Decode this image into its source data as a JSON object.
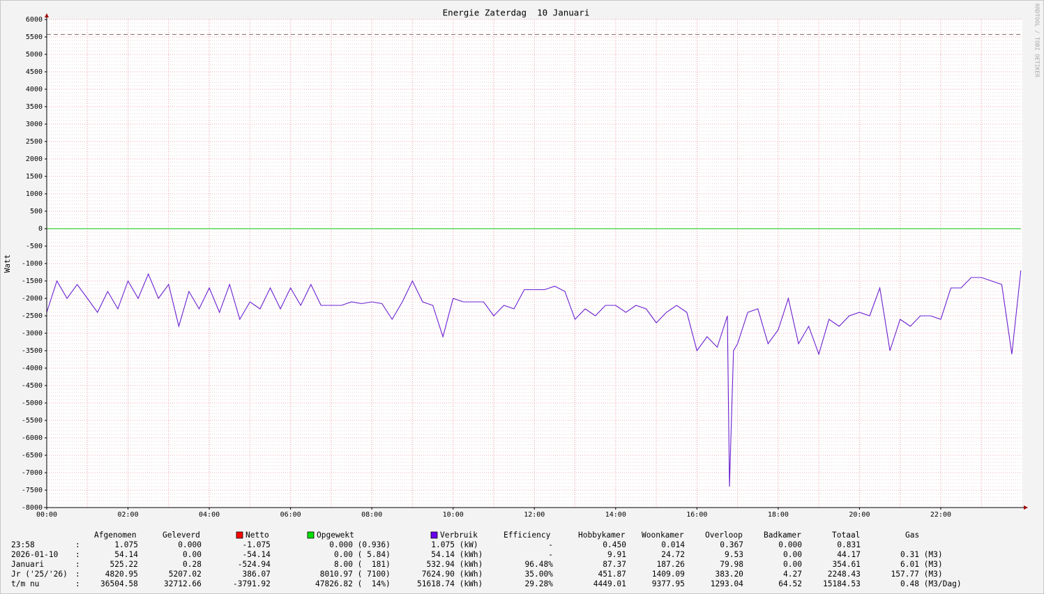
{
  "chart_data": {
    "type": "line",
    "title": "Energie Zaterdag  10 Januari",
    "y_label": "Watt",
    "side_text": "RRDTOOL / TOBI OETIKER",
    "x": [
      0,
      0.25,
      0.5,
      0.75,
      1,
      1.25,
      1.5,
      1.75,
      2,
      2.25,
      2.5,
      2.75,
      3,
      3.25,
      3.5,
      3.75,
      4,
      4.25,
      4.5,
      4.75,
      5,
      5.25,
      5.5,
      5.75,
      6,
      6.25,
      6.5,
      6.75,
      7,
      7.25,
      7.5,
      7.75,
      8,
      8.25,
      8.5,
      8.75,
      9,
      9.25,
      9.5,
      9.75,
      10,
      10.25,
      10.5,
      10.75,
      11,
      11.25,
      11.5,
      11.75,
      12,
      12.25,
      12.5,
      12.75,
      13,
      13.25,
      13.5,
      13.75,
      14,
      14.25,
      14.5,
      14.75,
      15,
      15.25,
      15.5,
      15.75,
      16,
      16.25,
      16.5,
      16.75,
      16.8,
      16.9,
      17,
      17.25,
      17.5,
      17.75,
      18,
      18.25,
      18.5,
      18.75,
      19,
      19.25,
      19.5,
      19.75,
      20,
      20.25,
      20.5,
      20.75,
      21,
      21.25,
      21.5,
      21.75,
      22,
      22.25,
      22.5,
      22.75,
      23,
      23.25,
      23.5,
      23.75,
      23.97
    ],
    "series": [
      {
        "name": "Opgewekt",
        "color": "#00c000",
        "x": [
          0,
          23.97
        ],
        "values": [
          0,
          0
        ]
      },
      {
        "name": "Verbruik",
        "color": "#6a1fd0",
        "values": [
          -2400,
          -1500,
          -2000,
          -1600,
          -2000,
          -2400,
          -1800,
          -2300,
          -1500,
          -2000,
          -1300,
          -2000,
          -1600,
          -2800,
          -1800,
          -2300,
          -1700,
          -2400,
          -1600,
          -2600,
          -2100,
          -2300,
          -1700,
          -2300,
          -1700,
          -2200,
          -1600,
          -2200,
          -2200,
          -2200,
          -2100,
          -2150,
          -2100,
          -2150,
          -2600,
          -2100,
          -1500,
          -2100,
          -2200,
          -3100,
          -2000,
          -2100,
          -2100,
          -2100,
          -2500,
          -2200,
          -2300,
          -1750,
          -1750,
          -1750,
          -1650,
          -1800,
          -2600,
          -2300,
          -2500,
          -2200,
          -2200,
          -2400,
          -2200,
          -2300,
          -2700,
          -2400,
          -2200,
          -2400,
          -3500,
          -3100,
          -3400,
          -2500,
          -7400,
          -3500,
          -3300,
          -2400,
          -2300,
          -3300,
          -2900,
          -2000,
          -3300,
          -2800,
          -3600,
          -2600,
          -2800,
          -2500,
          -2400,
          -2500,
          -1700,
          -3500,
          -2600,
          -2800,
          -2500,
          -2500,
          -2600,
          -1700,
          -1700,
          -1400,
          -1400,
          -1500,
          -1600,
          -3600,
          -1200
        ]
      }
    ],
    "max_line": {
      "value": 5570,
      "color": "#907070"
    },
    "xlim": [
      0,
      24
    ],
    "ylim": [
      -8000,
      6000
    ],
    "xticks": [
      {
        "value": 0,
        "label": "00:00"
      },
      {
        "value": 2,
        "label": "02:00"
      },
      {
        "value": 4,
        "label": "04:00"
      },
      {
        "value": 6,
        "label": "06:00"
      },
      {
        "value": 8,
        "label": "08:00"
      },
      {
        "value": 10,
        "label": "10:00"
      },
      {
        "value": 12,
        "label": "12:00"
      },
      {
        "value": 14,
        "label": "14:00"
      },
      {
        "value": 16,
        "label": "16:00"
      },
      {
        "value": 18,
        "label": "18:00"
      },
      {
        "value": 20,
        "label": "20:00"
      },
      {
        "value": 22,
        "label": "22:00"
      }
    ],
    "x_minor_ticks": [
      1,
      3,
      5,
      7,
      9,
      11,
      13,
      15,
      17,
      19,
      21,
      23
    ],
    "yticks": [
      6000,
      5500,
      5000,
      4500,
      4000,
      3500,
      3000,
      2500,
      2000,
      1500,
      1000,
      500,
      0,
      -500,
      -1000,
      -1500,
      -2000,
      -2500,
      -3000,
      -3500,
      -4000,
      -4500,
      -5000,
      -5500,
      -6000,
      -6500,
      -7000,
      -7500,
      -8000
    ],
    "y_minor_step": 100,
    "grid": true
  },
  "table": {
    "headers": [
      {
        "label": "Afgenomen"
      },
      {
        "label": "Geleverd"
      },
      {
        "label": "Netto",
        "color": "#ff0000"
      },
      {
        "label": "Opgewekt",
        "color": "#00e000"
      },
      {
        "label": "Verbruik",
        "color": "#6a00f0"
      },
      {
        "label": "Efficiency"
      },
      {
        "label": "Hobbykamer"
      },
      {
        "label": "Woonkamer"
      },
      {
        "label": "Overloop"
      },
      {
        "label": "Badkamer"
      },
      {
        "label": "Totaal"
      },
      {
        "label": "Gas"
      }
    ],
    "separator": ":",
    "rows": [
      {
        "label": "23:58",
        "cells": [
          "1.075",
          "0.000",
          "-1.075",
          "0.000 (0.936)",
          "1.075 (kW)",
          "-",
          "0.450",
          "0.014",
          "0.367",
          "0.000",
          "0.831"
        ]
      },
      {
        "label": "2026-01-10",
        "cells": [
          "54.14",
          "0.00",
          "-54.14",
          "0.00 ( 5.84)",
          "54.14 (kWh)",
          "-",
          "9.91",
          "24.72",
          "9.53",
          "0.00",
          "44.17",
          "0.31 (M3)"
        ]
      },
      {
        "label": "Januari",
        "cells": [
          "525.22",
          "0.28",
          "-524.94",
          "8.00 (  181)",
          "532.94 (kWh)",
          "96.48%",
          "87.37",
          "187.26",
          "79.98",
          "0.00",
          "354.61",
          "6.01 (M3)"
        ]
      },
      {
        "label": "Jr ('25/'26)",
        "cells": [
          "4820.95",
          "5207.02",
          "386.07",
          "8010.97 ( 7100)",
          "7624.90 (kWh)",
          "35.00%",
          "451.87",
          "1409.09",
          "383.20",
          "4.27",
          "2248.43",
          "157.77 (M3)"
        ]
      },
      {
        "label": "t/m nu",
        "cells": [
          "36504.58",
          "32712.66",
          "-3791.92",
          "47826.82 (  14%)",
          "51618.74 (kWh)",
          "29.28%",
          "4449.01",
          "9377.95",
          "1293.04",
          "64.52",
          "15184.53",
          "0.48 (M3/Dag)"
        ]
      }
    ]
  }
}
